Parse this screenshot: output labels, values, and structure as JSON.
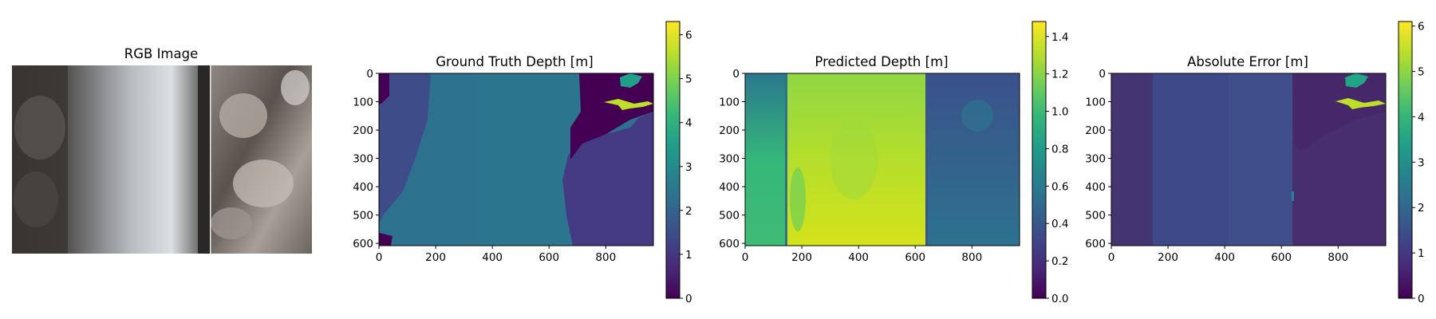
{
  "colors": {
    "viridis": [
      "#440154",
      "#482878",
      "#3e4989",
      "#31688e",
      "#26828e",
      "#1f9e89",
      "#35b779",
      "#6ece58",
      "#b5de2b",
      "#fde725"
    ],
    "axis": "#000000",
    "rgb_dark": "#3a3836",
    "rgb_light": "#d2d3d6"
  },
  "chart_data": [
    {
      "type": "image",
      "title": "RGB Image",
      "description_icons": [
        "underwater-photo"
      ]
    },
    {
      "type": "heatmap",
      "title": "Ground Truth Depth [m]",
      "x_ticks": [
        "0",
        "200",
        "400",
        "600",
        "800"
      ],
      "y_ticks": [
        "0",
        "100",
        "200",
        "300",
        "400",
        "500",
        "600"
      ],
      "xlim": [
        0,
        968
      ],
      "ylim": [
        608,
        0
      ],
      "colorbar": {
        "min": 0,
        "max": 6.3,
        "ticks": [
          "0",
          "1",
          "2",
          "3",
          "4",
          "5",
          "6"
        ]
      },
      "regions": [
        {
          "name": "left-wall",
          "value": 0.85
        },
        {
          "name": "channel",
          "value": 2.1
        },
        {
          "name": "right-rock",
          "value": 1.2
        },
        {
          "name": "far-background",
          "value": 0.1
        },
        {
          "name": "fish-1",
          "value": 3.3
        },
        {
          "name": "fish-2",
          "value": 5.6
        }
      ]
    },
    {
      "type": "heatmap",
      "title": "Predicted Depth [m]",
      "x_ticks": [
        "0",
        "200",
        "400",
        "600",
        "800"
      ],
      "y_ticks": [
        "0",
        "100",
        "200",
        "300",
        "400",
        "500",
        "600"
      ],
      "xlim": [
        0,
        968
      ],
      "ylim": [
        608,
        0
      ],
      "colorbar": {
        "min": 0,
        "max": 1.48,
        "ticks": [
          "0.0",
          "0.2",
          "0.4",
          "0.6",
          "0.8",
          "1.0",
          "1.2",
          "1.4"
        ]
      },
      "regions": [
        {
          "name": "left-strip",
          "value": 0.75
        },
        {
          "name": "center-bright",
          "value": 1.25
        },
        {
          "name": "right-darker",
          "value": 0.45
        }
      ]
    },
    {
      "type": "heatmap",
      "title": "Absolute Error [m]",
      "x_ticks": [
        "0",
        "200",
        "400",
        "600",
        "800"
      ],
      "y_ticks": [
        "0",
        "100",
        "200",
        "300",
        "400",
        "500",
        "600"
      ],
      "xlim": [
        0,
        968
      ],
      "ylim": [
        608,
        0
      ],
      "colorbar": {
        "min": 0,
        "max": 6.1,
        "ticks": [
          "0",
          "1",
          "2",
          "3",
          "4",
          "5",
          "6"
        ]
      },
      "regions": [
        {
          "name": "left-area",
          "value": 0.5
        },
        {
          "name": "channel",
          "value": 0.95
        },
        {
          "name": "right-area",
          "value": 0.45
        },
        {
          "name": "fish-1",
          "value": 3.4
        },
        {
          "name": "fish-2",
          "value": 5.4
        }
      ]
    }
  ]
}
